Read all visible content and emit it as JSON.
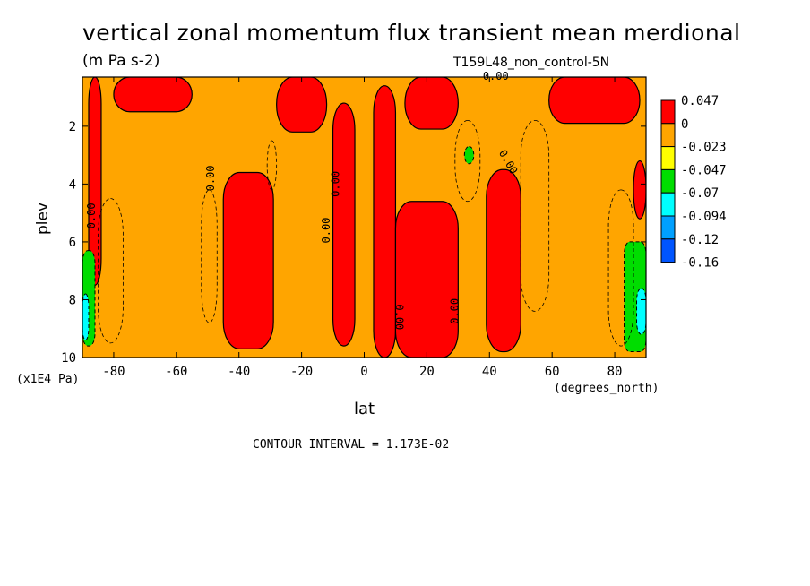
{
  "header": {
    "title": "vertical zonal momentum flux transient mean merdional",
    "units": "(m Pa s-2)",
    "run_id": "T159L48_non_control-5N"
  },
  "footer": {
    "contour_interval": "CONTOUR INTERVAL = 1.173E-02"
  },
  "chart_data": {
    "type": "heatmap",
    "title": "vertical zonal momentum flux transient mean merdional",
    "xlabel": "lat",
    "ylabel": "plev",
    "x_units": "(degrees_north)",
    "y_units": "(x1E4 Pa)",
    "xlim": [
      -90,
      90
    ],
    "ylim": [
      10,
      0.3
    ],
    "x_ticks": [
      "-80",
      "-60",
      "-40",
      "-20",
      "0",
      "20",
      "40",
      "60",
      "80"
    ],
    "y_ticks": [
      "2",
      "4",
      "6",
      "8",
      "10"
    ],
    "x_tick_values": [
      -80,
      -60,
      -40,
      -20,
      0,
      20,
      40,
      60,
      80
    ],
    "y_tick_values": [
      2,
      4,
      6,
      8,
      10
    ],
    "colorbar": {
      "labels": [
        "0.047",
        "0",
        "-0.023",
        "-0.047",
        "-0.07",
        "-0.094",
        "-0.12",
        "-0.16"
      ],
      "colors": [
        "#ff0000",
        "#ffa500",
        "#ffff00",
        "#00dd00",
        "#00ffff",
        "#00a0ff",
        "#0055ff"
      ]
    },
    "background_color": "#ffa500",
    "positive_color": "#ff0000",
    "contour_label": "0.00",
    "positive_regions": [
      {
        "lat": [
          -88,
          -84
        ],
        "plev": [
          0.3,
          7.5
        ]
      },
      {
        "lat": [
          -80,
          -55
        ],
        "plev": [
          0.3,
          1.5
        ]
      },
      {
        "lat": [
          -45,
          -29
        ],
        "plev": [
          3.6,
          9.7
        ]
      },
      {
        "lat": [
          -28,
          -12
        ],
        "plev": [
          0.3,
          2.2
        ]
      },
      {
        "lat": [
          -10,
          -3
        ],
        "plev": [
          1.2,
          9.6
        ]
      },
      {
        "lat": [
          3,
          10
        ],
        "plev": [
          0.6,
          10
        ]
      },
      {
        "lat": [
          10,
          30
        ],
        "plev": [
          4.6,
          10
        ]
      },
      {
        "lat": [
          13,
          30
        ],
        "plev": [
          0.3,
          2.1
        ]
      },
      {
        "lat": [
          39,
          50
        ],
        "plev": [
          3.5,
          9.8
        ]
      },
      {
        "lat": [
          59,
          88
        ],
        "plev": [
          0.3,
          1.9
        ]
      },
      {
        "lat": [
          86,
          90
        ],
        "plev": [
          3.2,
          5.2
        ]
      }
    ],
    "negative_regions": [
      {
        "lat": [
          -90,
          -86
        ],
        "plev": [
          6.3,
          9.6
        ],
        "level": "-0.023"
      },
      {
        "lat": [
          -90,
          -88
        ],
        "plev": [
          7.8,
          9.4
        ],
        "level": "-0.047"
      },
      {
        "lat": [
          32,
          35
        ],
        "plev": [
          2.7,
          3.3
        ],
        "level": "-0.023"
      },
      {
        "lat": [
          83,
          90
        ],
        "plev": [
          6.0,
          9.8
        ],
        "level": "-0.023"
      },
      {
        "lat": [
          87,
          90
        ],
        "plev": [
          7.6,
          9.2
        ],
        "level": "-0.047"
      }
    ]
  }
}
